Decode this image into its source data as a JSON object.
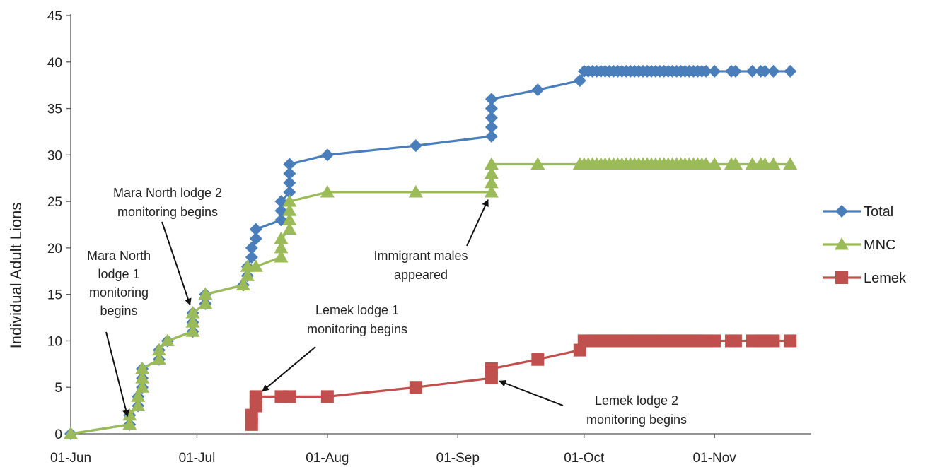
{
  "chart_data": {
    "type": "line",
    "title": "",
    "xlabel": "",
    "ylabel": "Individual Adult Lions",
    "ylim": [
      0,
      45
    ],
    "xlim": [
      "2013-06-01",
      "2013-11-24"
    ],
    "yticks": [
      0,
      5,
      10,
      15,
      20,
      25,
      30,
      35,
      40,
      45
    ],
    "xticks": [
      {
        "date": "2013-06-01",
        "label": "01-Jun"
      },
      {
        "date": "2013-07-01",
        "label": "01-Jul"
      },
      {
        "date": "2013-08-01",
        "label": "01-Aug"
      },
      {
        "date": "2013-09-01",
        "label": "01-Sep"
      },
      {
        "date": "2013-10-01",
        "label": "01-Oct"
      },
      {
        "date": "2013-11-01",
        "label": "01-Nov"
      }
    ],
    "grid": false,
    "legend": "right",
    "series": [
      {
        "name": "Total",
        "color": "#4a7ebb",
        "marker": "diamond",
        "points": [
          [
            "2013-06-01",
            0
          ],
          [
            "2013-06-15",
            1
          ],
          [
            "2013-06-15",
            2
          ],
          [
            "2013-06-17",
            3
          ],
          [
            "2013-06-17",
            4
          ],
          [
            "2013-06-18",
            5
          ],
          [
            "2013-06-18",
            6
          ],
          [
            "2013-06-18",
            7
          ],
          [
            "2013-06-22",
            8
          ],
          [
            "2013-06-22",
            9
          ],
          [
            "2013-06-24",
            10
          ],
          [
            "2013-06-30",
            11
          ],
          [
            "2013-06-30",
            12
          ],
          [
            "2013-06-30",
            13
          ],
          [
            "2013-07-03",
            14
          ],
          [
            "2013-07-03",
            15
          ],
          [
            "2013-07-12",
            16
          ],
          [
            "2013-07-13",
            17
          ],
          [
            "2013-07-13",
            18
          ],
          [
            "2013-07-14",
            19
          ],
          [
            "2013-07-14",
            20
          ],
          [
            "2013-07-15",
            21
          ],
          [
            "2013-07-15",
            22
          ],
          [
            "2013-07-21",
            23
          ],
          [
            "2013-07-21",
            24
          ],
          [
            "2013-07-21",
            25
          ],
          [
            "2013-07-23",
            26
          ],
          [
            "2013-07-23",
            27
          ],
          [
            "2013-07-23",
            28
          ],
          [
            "2013-07-23",
            29
          ],
          [
            "2013-08-01",
            30
          ],
          [
            "2013-08-22",
            31
          ],
          [
            "2013-09-09",
            32
          ],
          [
            "2013-09-09",
            33
          ],
          [
            "2013-09-09",
            34
          ],
          [
            "2013-09-09",
            35
          ],
          [
            "2013-09-09",
            36
          ],
          [
            "2013-09-20",
            37
          ],
          [
            "2013-09-30",
            38
          ],
          [
            "2013-10-01",
            39
          ],
          [
            "2013-10-02",
            39
          ],
          [
            "2013-10-03",
            39
          ],
          [
            "2013-10-04",
            39
          ],
          [
            "2013-10-05",
            39
          ],
          [
            "2013-10-06",
            39
          ],
          [
            "2013-10-07",
            39
          ],
          [
            "2013-10-08",
            39
          ],
          [
            "2013-10-09",
            39
          ],
          [
            "2013-10-10",
            39
          ],
          [
            "2013-10-11",
            39
          ],
          [
            "2013-10-12",
            39
          ],
          [
            "2013-10-13",
            39
          ],
          [
            "2013-10-14",
            39
          ],
          [
            "2013-10-15",
            39
          ],
          [
            "2013-10-16",
            39
          ],
          [
            "2013-10-17",
            39
          ],
          [
            "2013-10-18",
            39
          ],
          [
            "2013-10-19",
            39
          ],
          [
            "2013-10-20",
            39
          ],
          [
            "2013-10-21",
            39
          ],
          [
            "2013-10-22",
            39
          ],
          [
            "2013-10-23",
            39
          ],
          [
            "2013-10-24",
            39
          ],
          [
            "2013-10-25",
            39
          ],
          [
            "2013-10-26",
            39
          ],
          [
            "2013-10-27",
            39
          ],
          [
            "2013-10-28",
            39
          ],
          [
            "2013-10-29",
            39
          ],
          [
            "2013-10-30",
            39
          ],
          [
            "2013-11-01",
            39
          ],
          [
            "2013-11-05",
            39
          ],
          [
            "2013-11-06",
            39
          ],
          [
            "2013-11-10",
            39
          ],
          [
            "2013-11-12",
            39
          ],
          [
            "2013-11-13",
            39
          ],
          [
            "2013-11-15",
            39
          ],
          [
            "2013-11-19",
            39
          ]
        ]
      },
      {
        "name": "MNC",
        "color": "#9bbb59",
        "marker": "triangle",
        "points": [
          [
            "2013-06-01",
            0
          ],
          [
            "2013-06-15",
            1
          ],
          [
            "2013-06-15",
            2
          ],
          [
            "2013-06-17",
            3
          ],
          [
            "2013-06-17",
            4
          ],
          [
            "2013-06-18",
            5
          ],
          [
            "2013-06-18",
            6
          ],
          [
            "2013-06-18",
            7
          ],
          [
            "2013-06-22",
            8
          ],
          [
            "2013-06-22",
            9
          ],
          [
            "2013-06-24",
            10
          ],
          [
            "2013-06-30",
            11
          ],
          [
            "2013-06-30",
            12
          ],
          [
            "2013-06-30",
            13
          ],
          [
            "2013-07-03",
            14
          ],
          [
            "2013-07-03",
            15
          ],
          [
            "2013-07-12",
            16
          ],
          [
            "2013-07-13",
            17
          ],
          [
            "2013-07-13",
            18
          ],
          [
            "2013-07-15",
            18
          ],
          [
            "2013-07-21",
            19
          ],
          [
            "2013-07-21",
            20
          ],
          [
            "2013-07-21",
            21
          ],
          [
            "2013-07-23",
            22
          ],
          [
            "2013-07-23",
            23
          ],
          [
            "2013-07-23",
            24
          ],
          [
            "2013-07-23",
            25
          ],
          [
            "2013-08-01",
            26
          ],
          [
            "2013-08-22",
            26
          ],
          [
            "2013-09-09",
            26
          ],
          [
            "2013-09-09",
            27
          ],
          [
            "2013-09-09",
            28
          ],
          [
            "2013-09-09",
            29
          ],
          [
            "2013-09-20",
            29
          ],
          [
            "2013-09-30",
            29
          ],
          [
            "2013-10-01",
            29
          ],
          [
            "2013-10-02",
            29
          ],
          [
            "2013-10-03",
            29
          ],
          [
            "2013-10-04",
            29
          ],
          [
            "2013-10-05",
            29
          ],
          [
            "2013-10-06",
            29
          ],
          [
            "2013-10-07",
            29
          ],
          [
            "2013-10-08",
            29
          ],
          [
            "2013-10-09",
            29
          ],
          [
            "2013-10-10",
            29
          ],
          [
            "2013-10-11",
            29
          ],
          [
            "2013-10-12",
            29
          ],
          [
            "2013-10-13",
            29
          ],
          [
            "2013-10-14",
            29
          ],
          [
            "2013-10-15",
            29
          ],
          [
            "2013-10-16",
            29
          ],
          [
            "2013-10-17",
            29
          ],
          [
            "2013-10-18",
            29
          ],
          [
            "2013-10-19",
            29
          ],
          [
            "2013-10-20",
            29
          ],
          [
            "2013-10-21",
            29
          ],
          [
            "2013-10-22",
            29
          ],
          [
            "2013-10-23",
            29
          ],
          [
            "2013-10-24",
            29
          ],
          [
            "2013-10-25",
            29
          ],
          [
            "2013-10-26",
            29
          ],
          [
            "2013-10-27",
            29
          ],
          [
            "2013-10-28",
            29
          ],
          [
            "2013-10-29",
            29
          ],
          [
            "2013-10-30",
            29
          ],
          [
            "2013-11-01",
            29
          ],
          [
            "2013-11-05",
            29
          ],
          [
            "2013-11-06",
            29
          ],
          [
            "2013-11-10",
            29
          ],
          [
            "2013-11-12",
            29
          ],
          [
            "2013-11-13",
            29
          ],
          [
            "2013-11-15",
            29
          ],
          [
            "2013-11-19",
            29
          ]
        ]
      },
      {
        "name": "Lemek",
        "color": "#c0504d",
        "marker": "square",
        "points": [
          [
            "2013-07-14",
            1
          ],
          [
            "2013-07-14",
            2
          ],
          [
            "2013-07-15",
            3
          ],
          [
            "2013-07-15",
            4
          ],
          [
            "2013-07-21",
            4
          ],
          [
            "2013-07-23",
            4
          ],
          [
            "2013-08-01",
            4
          ],
          [
            "2013-08-22",
            5
          ],
          [
            "2013-09-09",
            6
          ],
          [
            "2013-09-09",
            7
          ],
          [
            "2013-09-20",
            8
          ],
          [
            "2013-09-30",
            9
          ],
          [
            "2013-10-01",
            10
          ],
          [
            "2013-10-02",
            10
          ],
          [
            "2013-10-03",
            10
          ],
          [
            "2013-10-04",
            10
          ],
          [
            "2013-10-05",
            10
          ],
          [
            "2013-10-06",
            10
          ],
          [
            "2013-10-07",
            10
          ],
          [
            "2013-10-08",
            10
          ],
          [
            "2013-10-09",
            10
          ],
          [
            "2013-10-10",
            10
          ],
          [
            "2013-10-11",
            10
          ],
          [
            "2013-10-12",
            10
          ],
          [
            "2013-10-13",
            10
          ],
          [
            "2013-10-14",
            10
          ],
          [
            "2013-10-15",
            10
          ],
          [
            "2013-10-16",
            10
          ],
          [
            "2013-10-17",
            10
          ],
          [
            "2013-10-18",
            10
          ],
          [
            "2013-10-19",
            10
          ],
          [
            "2013-10-20",
            10
          ],
          [
            "2013-10-21",
            10
          ],
          [
            "2013-10-22",
            10
          ],
          [
            "2013-10-23",
            10
          ],
          [
            "2013-10-24",
            10
          ],
          [
            "2013-10-25",
            10
          ],
          [
            "2013-10-26",
            10
          ],
          [
            "2013-10-27",
            10
          ],
          [
            "2013-10-28",
            10
          ],
          [
            "2013-10-29",
            10
          ],
          [
            "2013-10-30",
            10
          ],
          [
            "2013-11-01",
            10
          ],
          [
            "2013-11-05",
            10
          ],
          [
            "2013-11-06",
            10
          ],
          [
            "2013-11-10",
            10
          ],
          [
            "2013-11-12",
            10
          ],
          [
            "2013-11-13",
            10
          ],
          [
            "2013-11-15",
            10
          ],
          [
            "2013-11-19",
            10
          ]
        ]
      }
    ],
    "annotations": [
      {
        "name": "mara-north-lodge1",
        "lines": [
          "Mara North",
          "lodge 1",
          "monitoring",
          "begins"
        ],
        "points_to": [
          "2013-06-15",
          1
        ]
      },
      {
        "name": "mara-north-lodge2",
        "lines": [
          "Mara North lodge 2",
          "monitoring begins"
        ],
        "points_to": [
          "2013-06-30",
          13
        ]
      },
      {
        "name": "lemek-lodge1",
        "lines": [
          "Lemek lodge 1",
          "monitoring begins"
        ],
        "points_to": [
          "2013-07-15",
          4
        ]
      },
      {
        "name": "immigrant-males",
        "lines": [
          "Immigrant males",
          "appeared"
        ],
        "points_to": [
          "2013-09-09",
          26
        ]
      },
      {
        "name": "lemek-lodge2",
        "lines": [
          "Lemek lodge 2",
          "monitoring begins"
        ],
        "points_to": [
          "2013-09-09",
          6
        ]
      }
    ]
  }
}
